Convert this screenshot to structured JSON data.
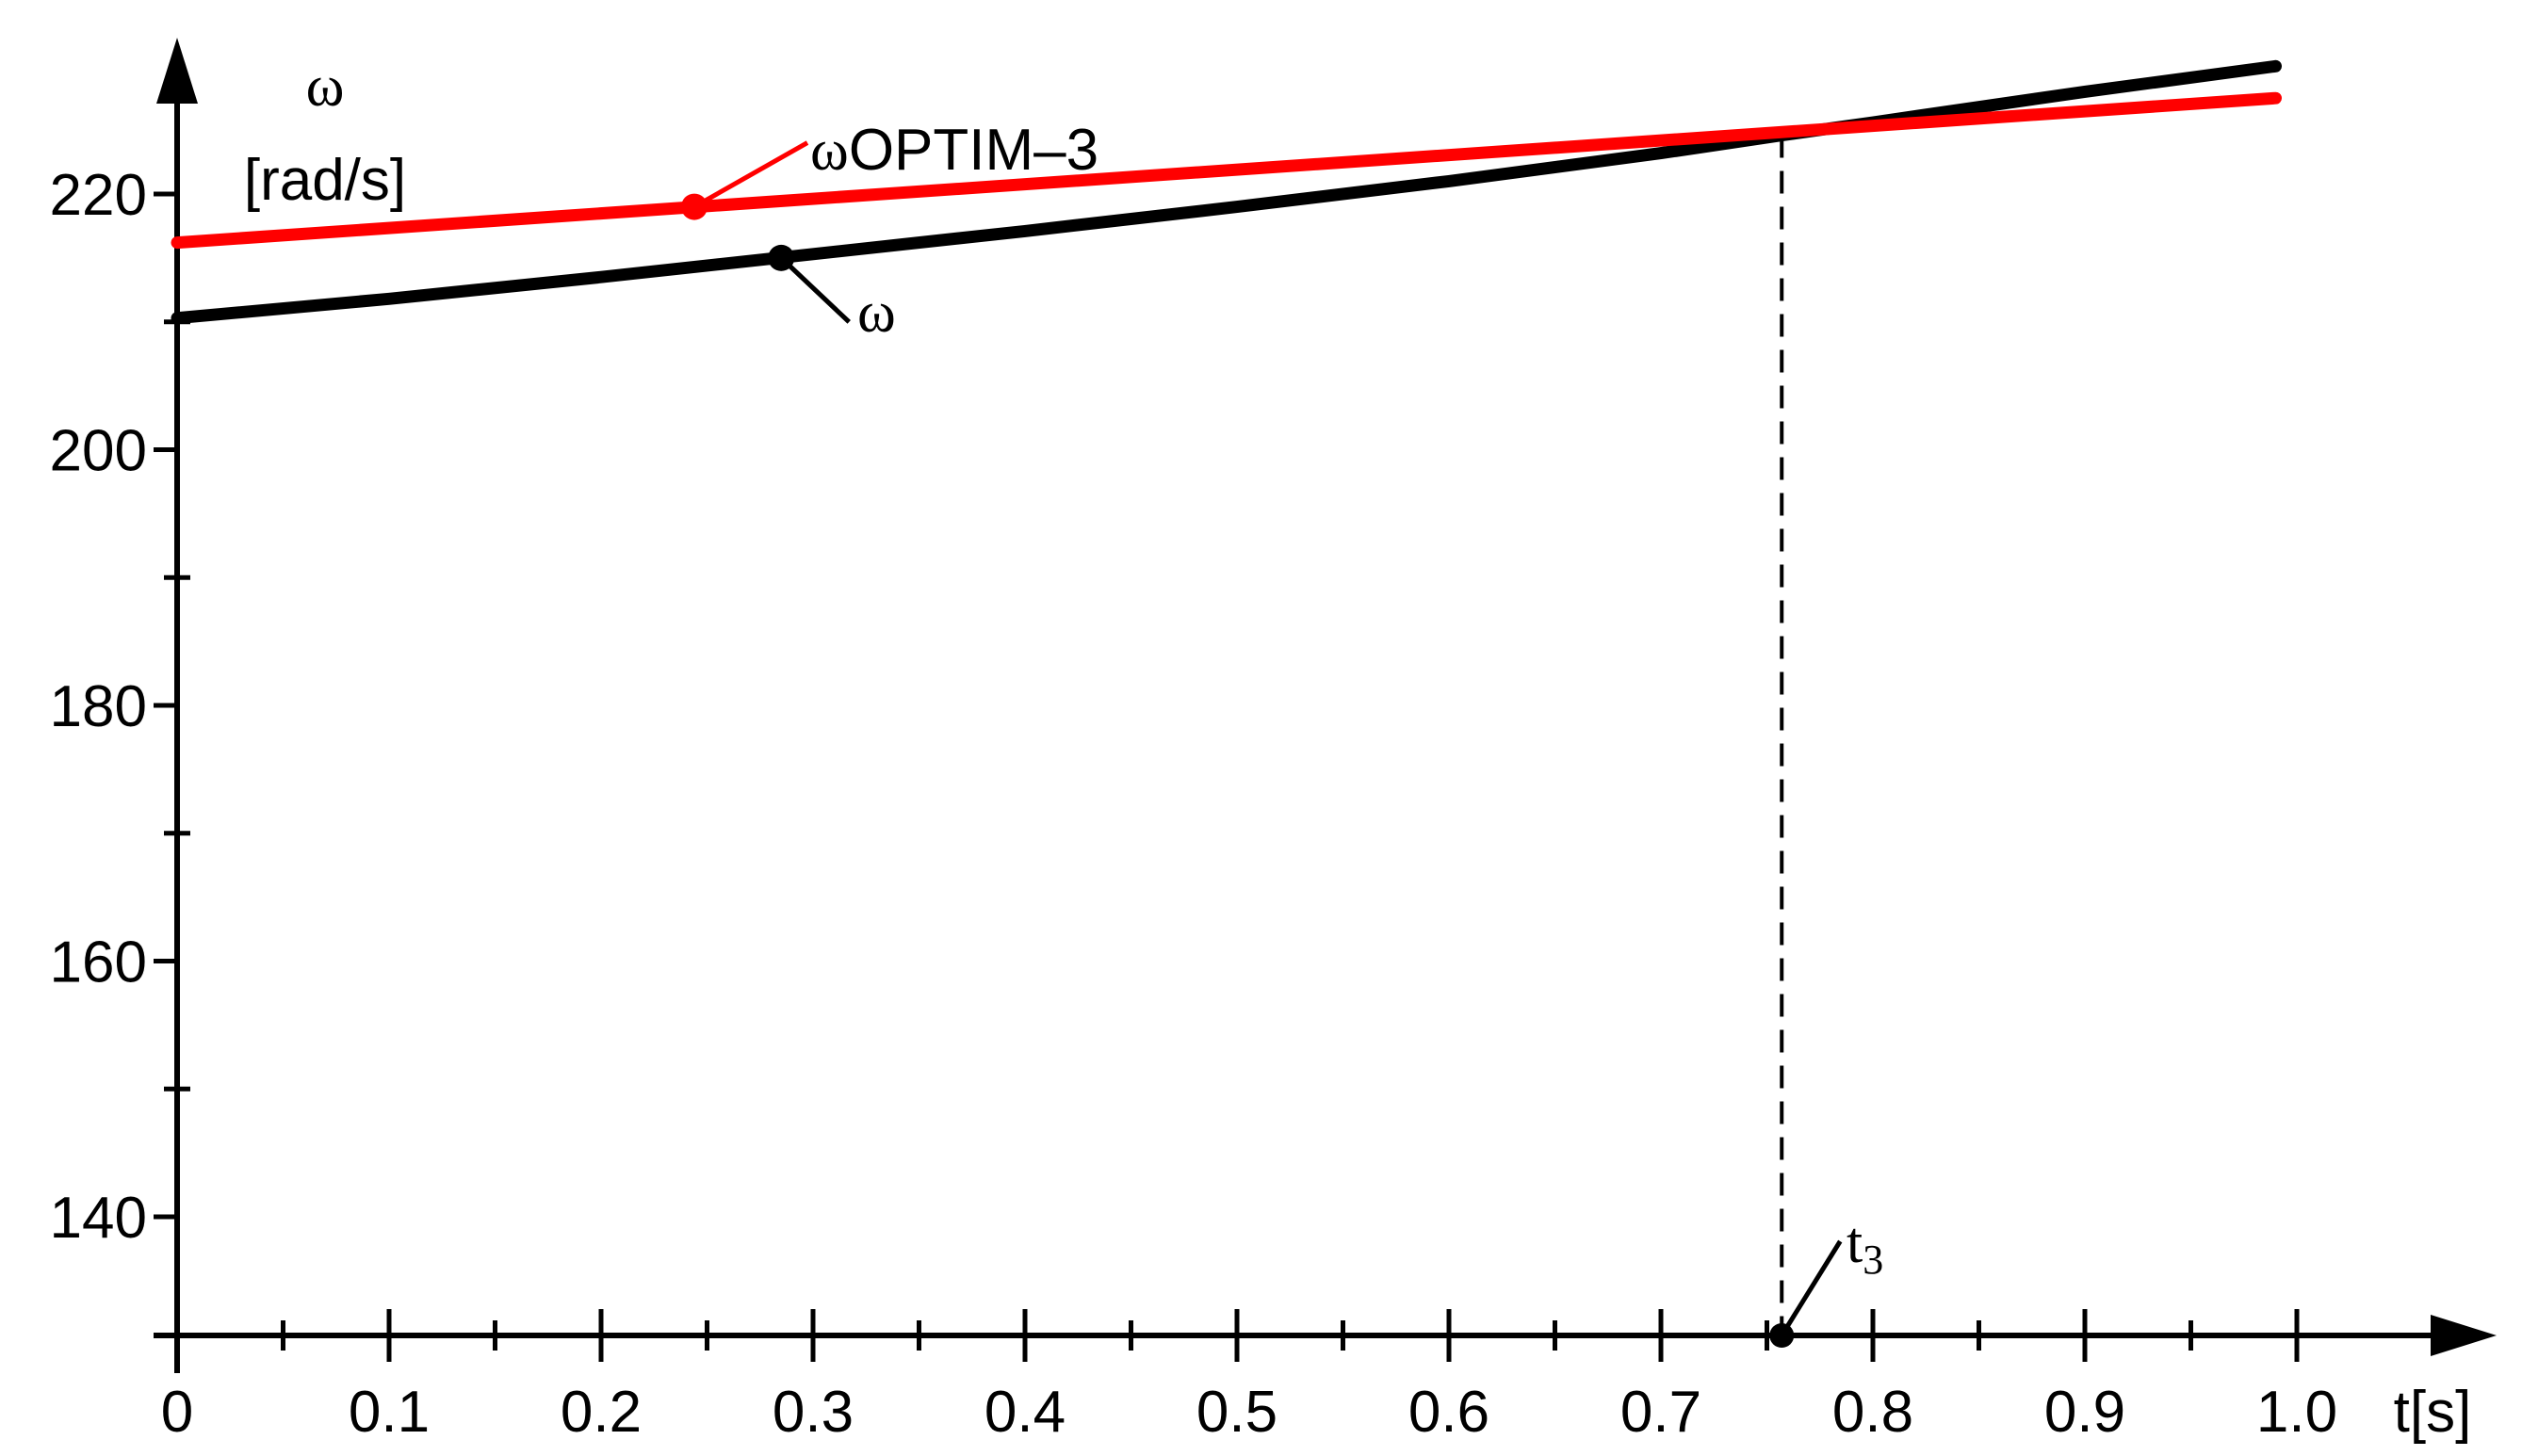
{
  "chart_data": {
    "type": "line",
    "y_axis": {
      "symbol": "ω",
      "unit": "[rad/s]",
      "ticks": [
        140,
        160,
        180,
        200,
        220
      ],
      "minor_ticks": [
        150,
        170,
        190,
        210
      ],
      "range": [
        131,
        230
      ]
    },
    "x_axis": {
      "label": "t[s]",
      "range": [
        0,
        1.0
      ],
      "ticks": [
        0,
        0.1,
        0.2,
        0.3,
        0.4,
        0.5,
        0.6,
        0.7,
        0.8,
        0.9,
        1.0
      ],
      "tick_labels": [
        "0",
        "0.1",
        "0.2",
        "0.3",
        "0.4",
        "0.5",
        "0.6",
        "0.7",
        "0.8",
        "0.9",
        "1.0"
      ],
      "minor_ticks": [
        0.05,
        0.15,
        0.25,
        0.35,
        0.45,
        0.55,
        0.65,
        0.75,
        0.85,
        0.95
      ]
    },
    "series": [
      {
        "name": "ω",
        "color": "#000000",
        "x": [
          0,
          0.1,
          0.2,
          0.3,
          0.4,
          0.5,
          0.6,
          0.7,
          0.757,
          0.8,
          0.9,
          0.99
        ],
        "y": [
          210.3,
          211.8,
          213.5,
          215.3,
          217.1,
          219.0,
          221.0,
          223.2,
          224.6,
          225.6,
          228.0,
          230.0
        ],
        "marker_x": 0.285,
        "marker_y": 215.0
      },
      {
        "name": "OPTIM–3",
        "color": "#ff0000",
        "x": [
          0,
          0.99
        ],
        "y": [
          216.2,
          227.5
        ],
        "marker_x": 0.244,
        "marker_y": 219.0
      }
    ],
    "t3": {
      "label": "t",
      "subscript": "3",
      "x": 0.757
    }
  }
}
